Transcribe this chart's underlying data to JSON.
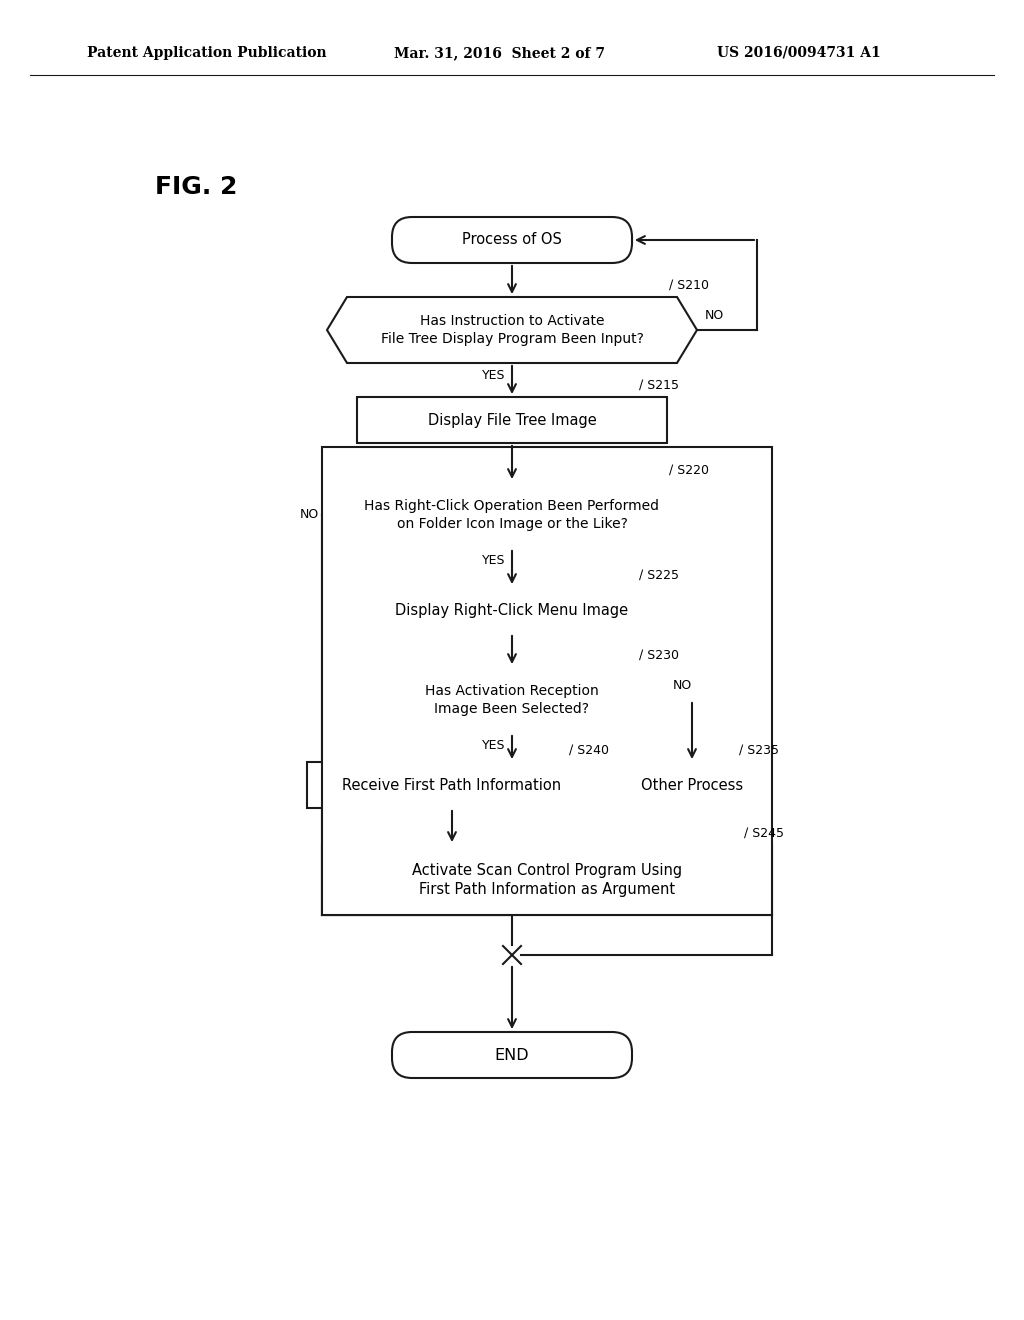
{
  "bg_color": "#ffffff",
  "header_left": "Patent Application Publication",
  "header_mid": "Mar. 31, 2016  Sheet 2 of 7",
  "header_right": "US 2016/0094731 A1",
  "fig_label": "FIG. 2",
  "line_color": "#1a1a1a",
  "text_color": "#000000",
  "font_size": 10.5,
  "header_fontsize": 10,
  "lw": 1.5
}
